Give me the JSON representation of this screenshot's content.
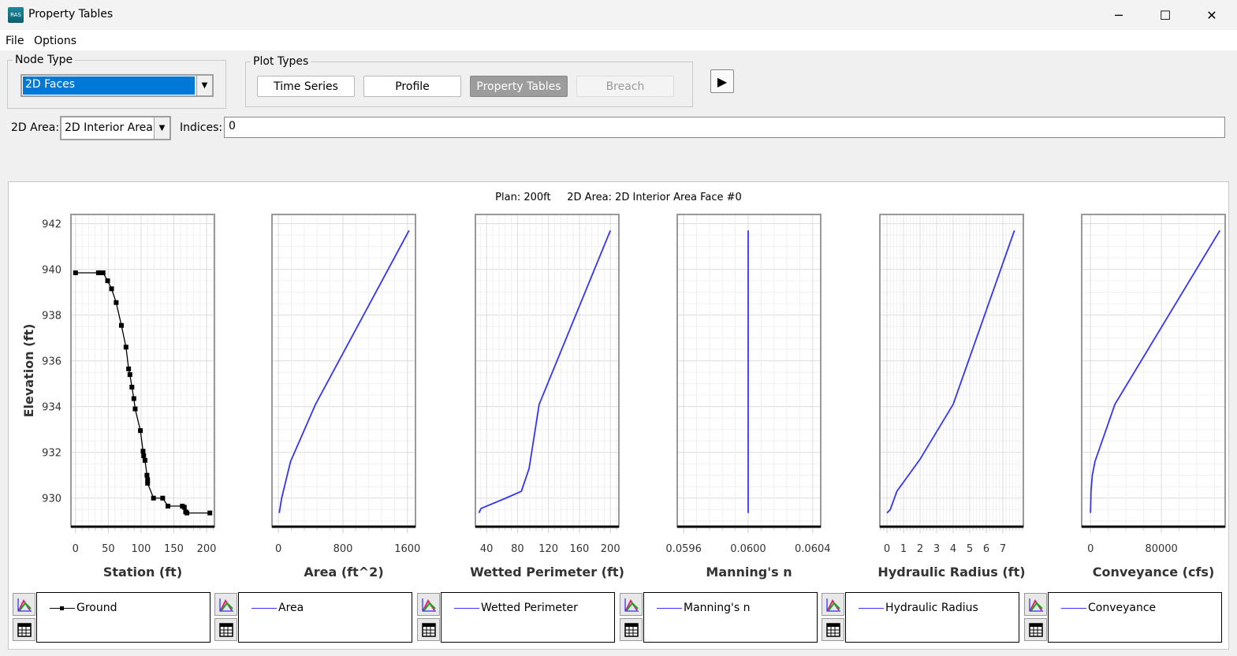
{
  "window": {
    "title": "Property Tables",
    "minimize": "─",
    "maximize": "☐",
    "close": "✕"
  },
  "menu": {
    "items": [
      "File",
      "Options"
    ]
  },
  "node_type": {
    "label": "Node Type",
    "value": "2D Faces"
  },
  "plot_types": {
    "label": "Plot Types",
    "buttons": [
      "Time Series",
      "Profile",
      "Property Tables",
      "Breach"
    ],
    "selected": "Property Tables",
    "disabled": "Breach"
  },
  "play_icon": "▶",
  "area_selector": {
    "label": "2D Area:",
    "value": "2D Interior Area"
  },
  "indices": {
    "label": "Indices:",
    "value": "0"
  },
  "plot_title": "Plan: 200ft     2D Area: 2D Interior Area Face #0",
  "colors": {
    "series_blue": "#3333ff",
    "ground": "#000000",
    "selected_combo": "#0078d7"
  },
  "chart_data": [
    {
      "type": "line",
      "xlabel": "Station (ft)",
      "ylabel": "Elevation (ft)",
      "legend": "Ground",
      "markers": true,
      "color": "#000000",
      "xlim": [
        -7,
        212
      ],
      "ylim": [
        928.75,
        942.4
      ],
      "xticks": [
        0,
        50,
        100,
        150,
        200
      ],
      "yticks": [
        930,
        932,
        934,
        936,
        938,
        940,
        942
      ],
      "x": [
        0,
        35,
        38,
        42,
        49,
        55,
        62,
        70,
        77,
        81,
        83,
        86,
        89,
        91,
        99,
        103,
        104,
        106,
        109,
        110,
        110,
        119,
        133,
        141,
        163,
        166,
        168,
        170,
        205
      ],
      "y": [
        939.85,
        939.85,
        939.85,
        939.85,
        939.5,
        939.15,
        938.55,
        937.55,
        936.6,
        935.65,
        935.4,
        934.85,
        934.35,
        933.9,
        932.95,
        932.05,
        931.85,
        931.65,
        931.0,
        930.8,
        930.65,
        930.0,
        930.0,
        929.65,
        929.65,
        929.6,
        929.4,
        929.35,
        929.35
      ]
    },
    {
      "type": "line",
      "xlabel": "Area (ft^2)",
      "legend": "Area",
      "color": "#3333ff",
      "xlim": [
        -80,
        1700
      ],
      "ylim": [
        928.75,
        942.4
      ],
      "xticks": [
        0,
        800,
        1600
      ],
      "x": [
        10,
        40,
        150,
        460,
        1620
      ],
      "y": [
        929.35,
        930.0,
        931.6,
        934.1,
        941.7
      ]
    },
    {
      "type": "line",
      "xlabel": "Wetted Perimeter (ft)",
      "legend": "Wetted Perimeter",
      "color": "#3333ff",
      "xlim": [
        25.6,
        211
      ],
      "ylim": [
        928.75,
        942.4
      ],
      "xticks": [
        40,
        80,
        120,
        160,
        200
      ],
      "x": [
        30,
        33,
        65,
        85,
        95,
        108,
        200
      ],
      "y": [
        929.35,
        929.55,
        930.0,
        930.3,
        931.3,
        934.1,
        941.7
      ]
    },
    {
      "type": "line",
      "xlabel": "Manning's n",
      "legend": "Manning's n",
      "color": "#3333ff",
      "xlim": [
        0.05956,
        0.06045
      ],
      "ylim": [
        928.75,
        942.4
      ],
      "xticks": [
        0.0596,
        0.06,
        0.0604
      ],
      "xticklabels": [
        "0.0596",
        "0.0600",
        "0.0604"
      ],
      "x": [
        0.06,
        0.06
      ],
      "y": [
        929.35,
        941.7
      ]
    },
    {
      "type": "line",
      "xlabel": "Hydraulic Radius (ft)",
      "legend": "Hydraulic Radius",
      "color": "#3333ff",
      "xlim": [
        -0.43,
        8.24
      ],
      "ylim": [
        928.75,
        942.4
      ],
      "xticks": [
        0,
        1,
        2,
        3,
        4,
        5,
        6,
        7
      ],
      "x": [
        0,
        0.2,
        0.6,
        2,
        4,
        7.7
      ],
      "y": [
        929.35,
        929.5,
        930.3,
        931.7,
        934.1,
        941.7
      ]
    },
    {
      "type": "line",
      "xlabel": "Conveyance (cfs)",
      "legend": "Conveyance",
      "color": "#3333ff",
      "xlim": [
        -10000,
        152000
      ],
      "ylim": [
        928.75,
        942.4
      ],
      "xticks": [
        0,
        80000
      ],
      "x": [
        0,
        500,
        2000,
        5000,
        27500,
        146000
      ],
      "y": [
        929.35,
        930.3,
        931.0,
        931.6,
        934.1,
        941.7
      ]
    }
  ]
}
